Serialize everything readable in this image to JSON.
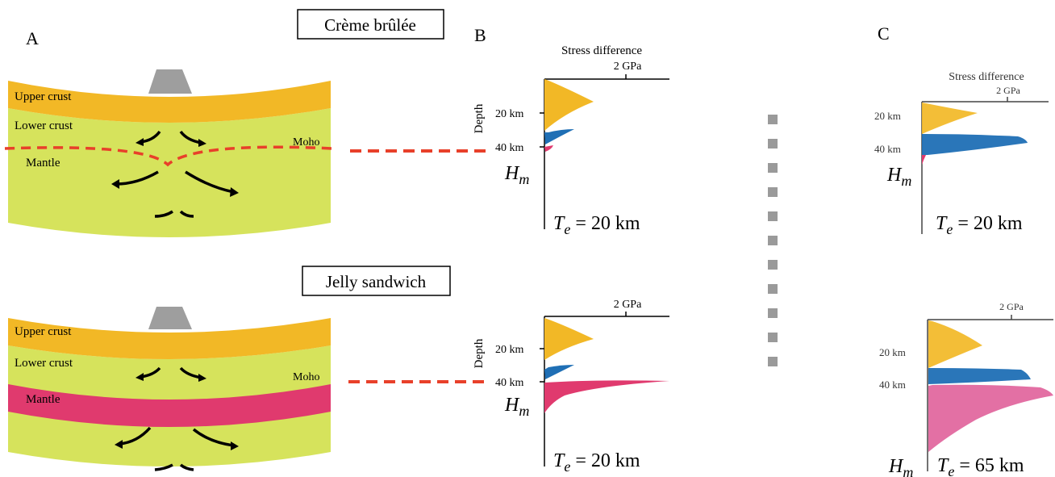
{
  "panels": {
    "a": "A",
    "b": "B",
    "c": "C"
  },
  "models": {
    "creme_brulee": "Crème brûlée",
    "jelly_sandwich": "Jelly sandwich"
  },
  "layers": {
    "upper_crust": "Upper crust",
    "lower_crust": "Lower crust",
    "mantle": "Mantle",
    "moho": "Moho"
  },
  "strength_profiles": {
    "stress_difference": "Stress difference",
    "gpa_tick": "2 GPa",
    "depth": "Depth",
    "depth_20": "20 km",
    "depth_40": "40 km",
    "hm_main": "H",
    "hm_sub": "m",
    "te_main": "T",
    "te_sub": "e",
    "te_20": "= 20 km",
    "te_65": "= 65 km"
  },
  "colors": {
    "upper_crust": "#F2B826",
    "lower_crust": "#D6E35C",
    "mantle_strong": "#E03A6E",
    "lower_crust_strength": "#1F6FB5",
    "moho_line": "#E8402A",
    "volcano": "#9E9E9E",
    "separator": "#9A9A9A"
  }
}
